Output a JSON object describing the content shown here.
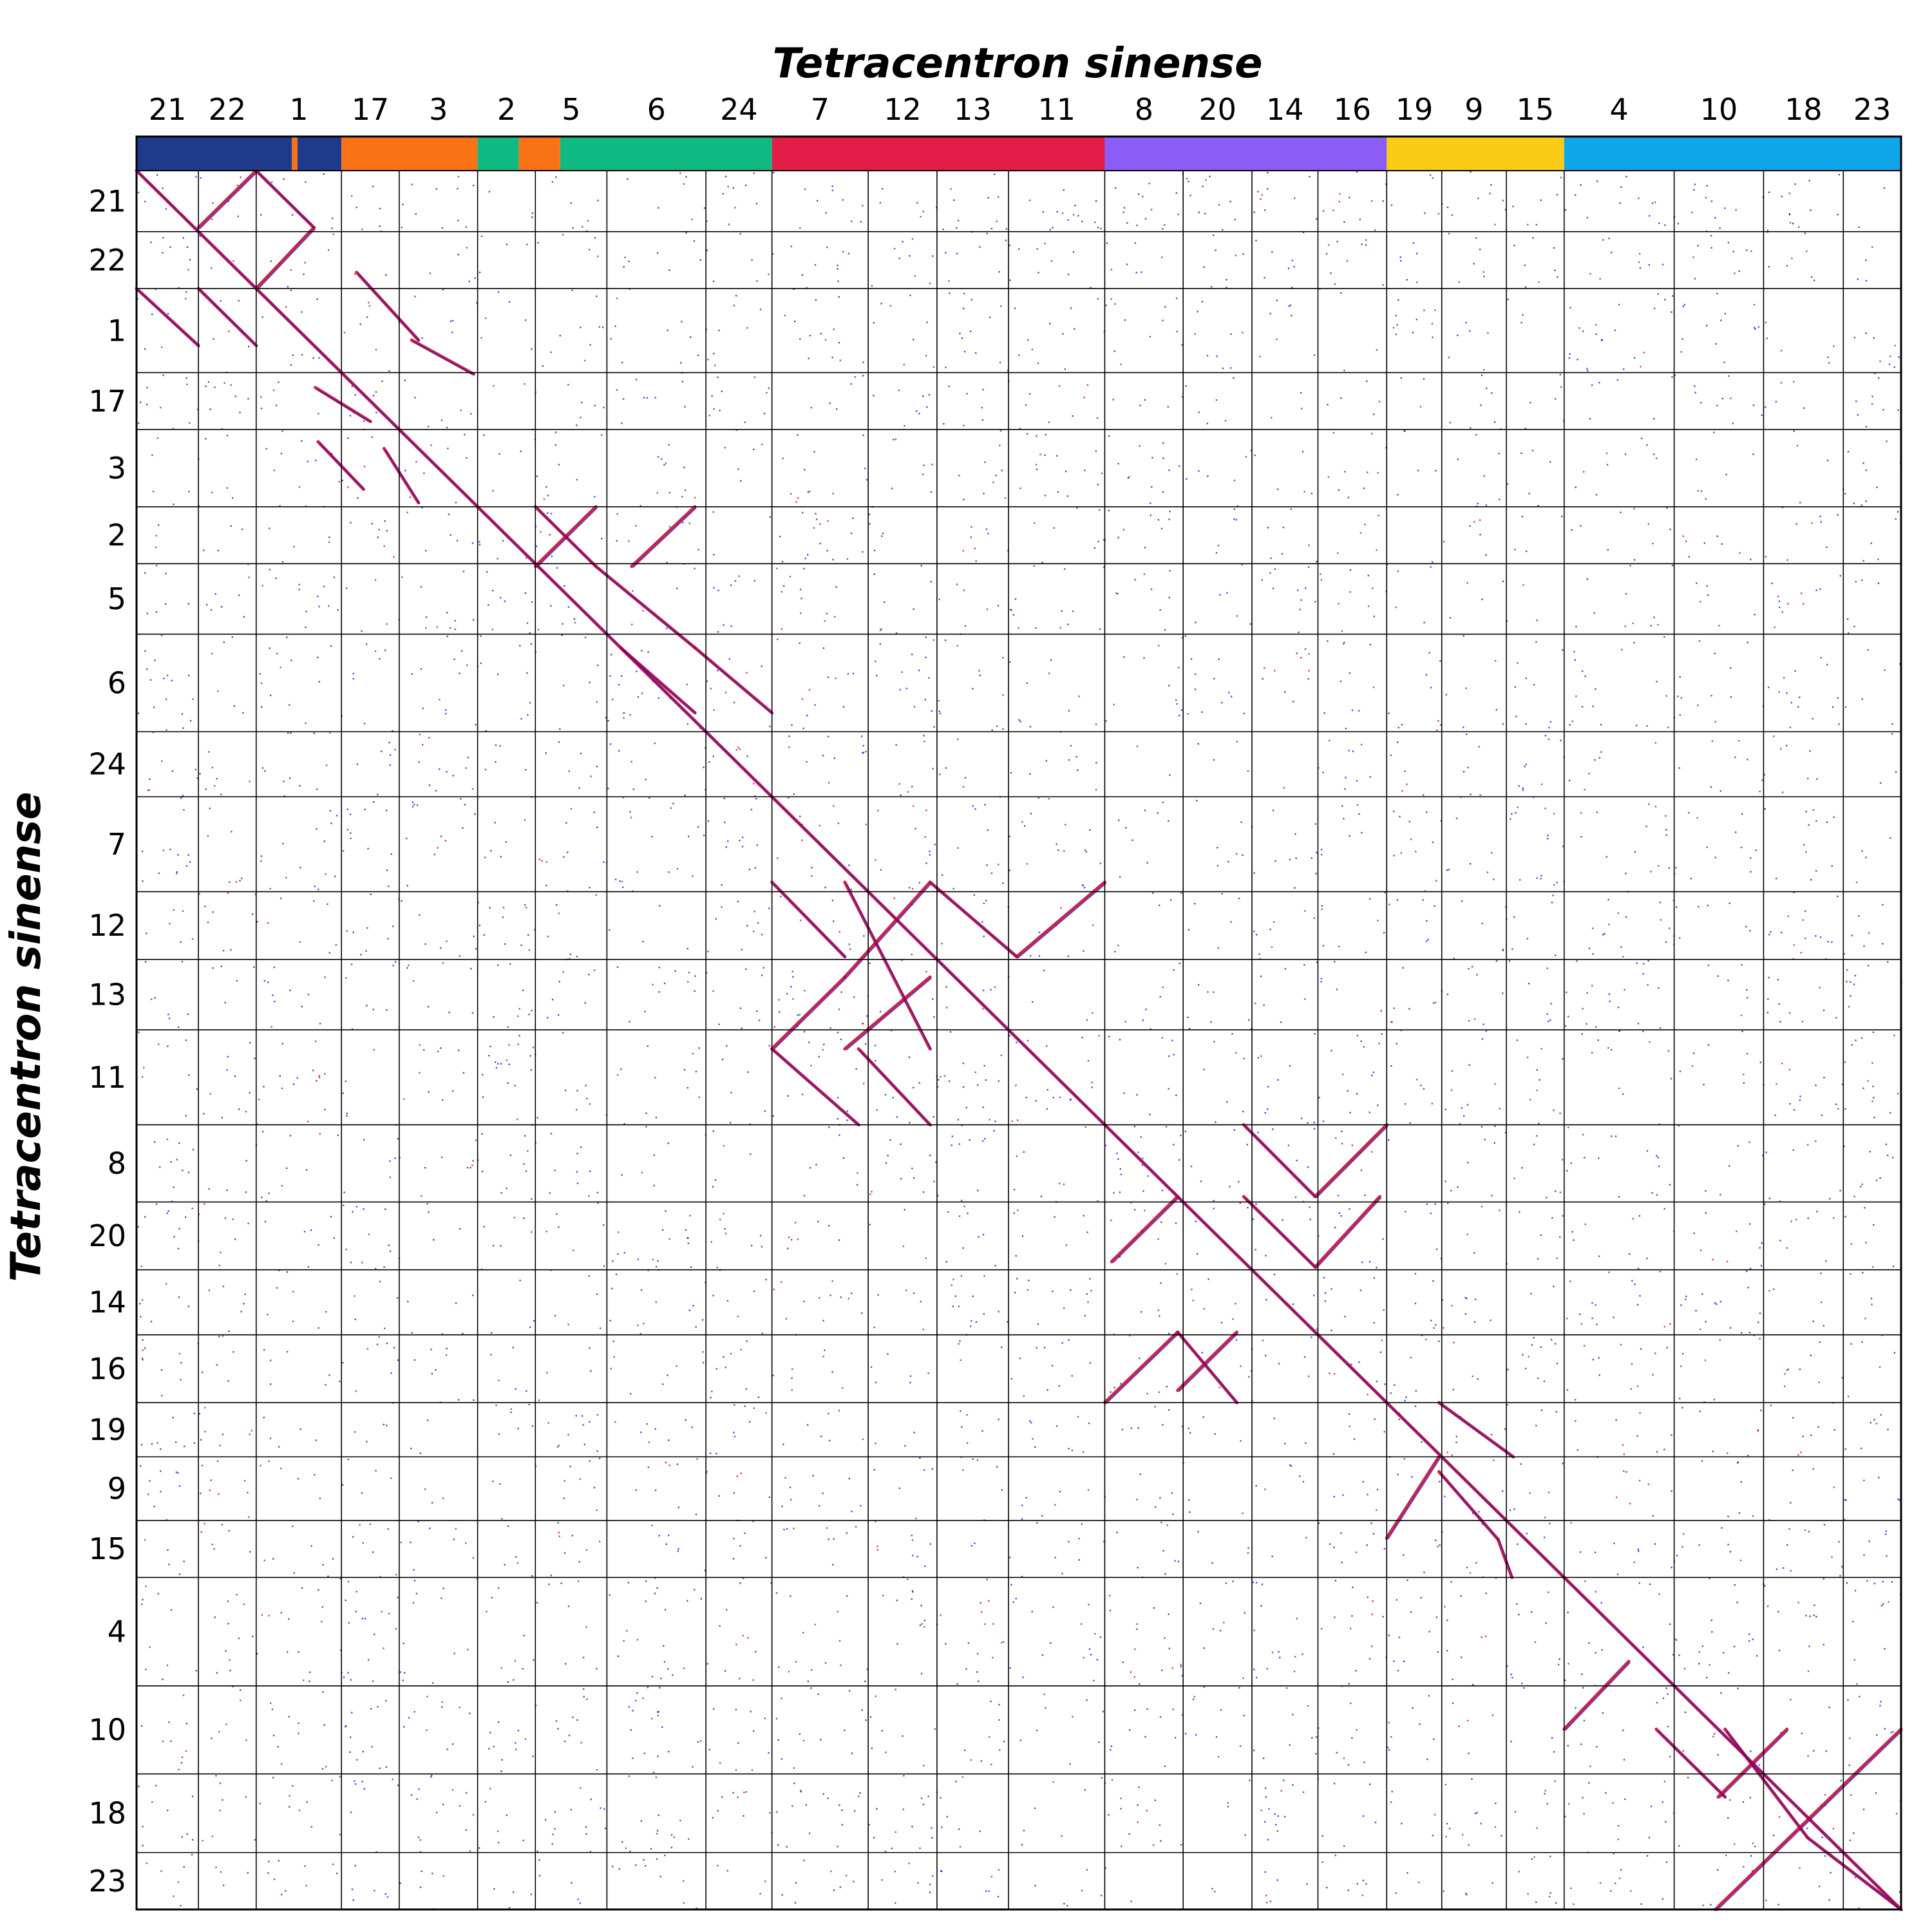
{
  "chart_data": {
    "type": "dot-plot",
    "title": "Tetracentron sinense",
    "xlabel": "Tetracentron sinense",
    "ylabel": "Tetracentron sinense",
    "grid": true,
    "chromosome_order": [
      "21",
      "22",
      "1",
      "17",
      "3",
      "2",
      "5",
      "6",
      "24",
      "7",
      "12",
      "13",
      "11",
      "8",
      "20",
      "14",
      "16",
      "19",
      "9",
      "15",
      "4",
      "10",
      "18",
      "23"
    ],
    "chromosome_sizes": [
      45,
      42,
      62,
      42,
      57,
      42,
      52,
      72,
      48,
      70,
      50,
      52,
      70,
      57,
      50,
      48,
      50,
      40,
      47,
      42,
      80,
      65,
      58,
      42
    ],
    "color_groups": [
      {
        "group": "A",
        "color": "#1f3a8a",
        "chromosomes": [
          "21",
          "22",
          "1"
        ]
      },
      {
        "group": "B",
        "color": "#f97316",
        "chromosomes": [
          "17",
          "3"
        ]
      },
      {
        "group": "C",
        "color": "#10b981",
        "chromosomes": [
          "2",
          "5",
          "6",
          "24"
        ]
      },
      {
        "group": "D",
        "color": "#e11d48",
        "chromosomes": [
          "7",
          "12",
          "13",
          "11"
        ]
      },
      {
        "group": "E",
        "color": "#8b5cf6",
        "chromosomes": [
          "8",
          "20",
          "14",
          "16"
        ]
      },
      {
        "group": "F",
        "color": "#facc15",
        "chromosomes": [
          "19",
          "9",
          "15"
        ]
      },
      {
        "group": "G",
        "color": "#0ea5e9",
        "chromosomes": [
          "4",
          "10",
          "18",
          "23"
        ]
      }
    ],
    "x_color_bar": [
      {
        "from": 0,
        "to": 113,
        "color": "#1f3a8a"
      },
      {
        "from": 113,
        "to": 117,
        "color": "#f97316"
      },
      {
        "from": 117,
        "to": 149,
        "color": "#1f3a8a"
      },
      {
        "from": 149,
        "to": 248,
        "color": "#f97316"
      },
      {
        "from": 248,
        "to": 278,
        "color": "#10b981"
      },
      {
        "from": 278,
        "to": 308,
        "color": "#f97316"
      },
      {
        "from": 308,
        "to": 462,
        "color": "#10b981"
      },
      {
        "from": 462,
        "to": 704,
        "color": "#e11d48"
      },
      {
        "from": 704,
        "to": 909,
        "color": "#8b5cf6"
      },
      {
        "from": 909,
        "to": 1038,
        "color": "#facc15"
      },
      {
        "from": 1038,
        "to": 1283,
        "color": "#0ea5e9"
      }
    ],
    "dot_colors": {
      "high_identity": "#c0002a",
      "low_identity": "#1010d0"
    },
    "syntenic_blocks": [
      {
        "x": [
          0,
          87
        ],
        "y": [
          0,
          87
        ],
        "orientation": "forward"
      },
      {
        "x": [
          87,
          45
        ],
        "y": [
          0,
          42
        ],
        "orientation": "reverse"
      },
      {
        "x": [
          45,
          87
        ],
        "y": [
          87,
          129
        ],
        "orientation": "reverse"
      },
      {
        "x": [
          87,
          129
        ],
        "y": [
          0,
          42
        ],
        "orientation": "forward"
      },
      {
        "x": [
          129,
          87
        ],
        "y": [
          42,
          87
        ],
        "orientation": "reverse"
      },
      {
        "x": [
          0,
          45
        ],
        "y": [
          87,
          129
        ],
        "orientation": "forward"
      },
      {
        "x": [
          87,
          149
        ],
        "y": [
          87,
          149
        ],
        "orientation": "forward"
      },
      {
        "x": [
          149,
          248
        ],
        "y": [
          149,
          248
        ],
        "orientation": "forward"
      },
      {
        "x": [
          248,
          462
        ],
        "y": [
          248,
          462
        ],
        "orientation": "forward"
      },
      {
        "x": [
          462,
          704
        ],
        "y": [
          462,
          704
        ],
        "orientation": "forward"
      },
      {
        "x": [
          704,
          909
        ],
        "y": [
          704,
          909
        ],
        "orientation": "forward"
      },
      {
        "x": [
          909,
          1038
        ],
        "y": [
          909,
          1038
        ],
        "orientation": "forward"
      },
      {
        "x": [
          1038,
          1283
        ],
        "y": [
          1038,
          1283
        ],
        "orientation": "forward"
      },
      {
        "x": [
          160,
          205
        ],
        "y": [
          75,
          125
        ],
        "orientation": "forward"
      },
      {
        "x": [
          200,
          245
        ],
        "y": [
          125,
          150
        ],
        "orientation": "forward"
      },
      {
        "x": [
          130,
          170
        ],
        "y": [
          160,
          185
        ],
        "orientation": "forward"
      },
      {
        "x": [
          132,
          165
        ],
        "y": [
          200,
          235
        ],
        "orientation": "forward"
      },
      {
        "x": [
          180,
          205
        ],
        "y": [
          205,
          245
        ],
        "orientation": "forward"
      },
      {
        "x": [
          290,
          334
        ],
        "y": [
          248,
          292
        ],
        "orientation": "forward"
      },
      {
        "x": [
          334,
          406
        ],
        "y": [
          292,
          352
        ],
        "orientation": "forward"
      },
      {
        "x": [
          406,
          462
        ],
        "y": [
          352,
          400
        ],
        "orientation": "forward"
      },
      {
        "x": [
          334,
          290
        ],
        "y": [
          248,
          292
        ],
        "orientation": "reverse"
      },
      {
        "x": [
          406,
          360
        ],
        "y": [
          248,
          292
        ],
        "orientation": "reverse"
      },
      {
        "x": [
          406,
          352
        ],
        "y": [
          400,
          352
        ],
        "orientation": "reverse"
      },
      {
        "x": [
          515,
          462
        ],
        "y": [
          595,
          648
        ],
        "orientation": "reverse"
      },
      {
        "x": [
          515,
          577
        ],
        "y": [
          525,
          648
        ],
        "orientation": "forward"
      },
      {
        "x": [
          515,
          577
        ],
        "y": [
          648,
          595
        ],
        "orientation": "reverse"
      },
      {
        "x": [
          577,
          515
        ],
        "y": [
          525,
          595
        ],
        "orientation": "reverse"
      },
      {
        "x": [
          515,
          462
        ],
        "y": [
          580,
          525
        ],
        "orientation": "reverse"
      },
      {
        "x": [
          462,
          525
        ],
        "y": [
          648,
          704
        ],
        "orientation": "forward"
      },
      {
        "x": [
          525,
          577
        ],
        "y": [
          648,
          704
        ],
        "orientation": "reverse"
      },
      {
        "x": [
          577,
          640
        ],
        "y": [
          525,
          580
        ],
        "orientation": "forward"
      },
      {
        "x": [
          640,
          704
        ],
        "y": [
          580,
          525
        ],
        "orientation": "reverse"
      },
      {
        "x": [
          757,
          800
        ],
        "y": [
          900,
          857
        ],
        "orientation": "reverse"
      },
      {
        "x": [
          757,
          800
        ],
        "y": [
          857,
          909
        ],
        "orientation": "forward"
      },
      {
        "x": [
          704,
          757
        ],
        "y": [
          909,
          857
        ],
        "orientation": "reverse"
      },
      {
        "x": [
          757,
          709
        ],
        "y": [
          757,
          805
        ],
        "orientation": "reverse"
      },
      {
        "x": [
          805,
          857
        ],
        "y": [
          704,
          757
        ],
        "orientation": "forward"
      },
      {
        "x": [
          857,
          909
        ],
        "y": [
          757,
          704
        ],
        "orientation": "reverse"
      },
      {
        "x": [
          805,
          857
        ],
        "y": [
          757,
          809
        ],
        "orientation": "forward"
      },
      {
        "x": [
          857,
          904
        ],
        "y": [
          809,
          757
        ],
        "orientation": "reverse"
      },
      {
        "x": [
          947,
          1001
        ],
        "y": [
          909,
          949
        ],
        "orientation": "forward"
      },
      {
        "x": [
          947,
          909
        ],
        "y": [
          949,
          1009
        ],
        "orientation": "reverse"
      },
      {
        "x": [
          947,
          990
        ],
        "y": [
          960,
          1010
        ],
        "orientation": "forward"
      },
      {
        "x": [
          990,
          1000
        ],
        "y": [
          1010,
          1038
        ],
        "orientation": "forward"
      },
      {
        "x": [
          1038,
          1085
        ],
        "y": [
          1150,
          1100
        ],
        "orientation": "reverse"
      },
      {
        "x": [
          1105,
          1155
        ],
        "y": [
          1150,
          1200
        ],
        "orientation": "forward"
      },
      {
        "x": [
          1150,
          1200
        ],
        "y": [
          1200,
          1150
        ],
        "orientation": "reverse"
      },
      {
        "x": [
          1155,
          1215
        ],
        "y": [
          1150,
          1230
        ],
        "orientation": "forward"
      },
      {
        "x": [
          1215,
          1283
        ],
        "y": [
          1230,
          1283
        ],
        "orientation": "forward"
      },
      {
        "x": [
          1148,
          1283
        ],
        "y": [
          1283,
          1150
        ],
        "orientation": "reverse"
      }
    ]
  }
}
